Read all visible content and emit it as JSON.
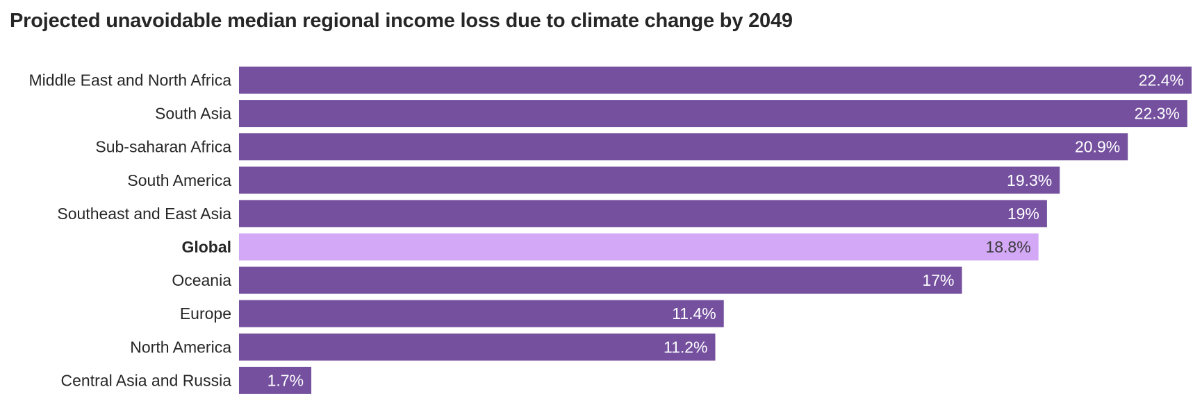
{
  "chart_data": {
    "type": "bar",
    "orientation": "horizontal",
    "title": "Projected unavoidable median regional income loss due to climate change by 2049",
    "value_suffix": "%",
    "value_labels": [
      "22.4%",
      "22.3%",
      "20.9%",
      "19.3%",
      "19%",
      "18.8%",
      "17%",
      "11.4%",
      "11.2%",
      "1.7%"
    ],
    "categories": [
      "Middle East and North Africa",
      "South Asia",
      "Sub-saharan Africa",
      "South America",
      "Southeast and East Asia",
      "Global",
      "Oceania",
      "Europe",
      "North America",
      "Central Asia and Russia"
    ],
    "values": [
      22.4,
      22.3,
      20.9,
      19.3,
      19,
      18.8,
      17,
      11.4,
      11.2,
      1.7
    ],
    "highlight_category": "Global",
    "xlim": [
      0,
      22.4
    ],
    "grid": false,
    "legend": "none",
    "xlabel": "",
    "ylabel": ""
  },
  "colors": {
    "bar": "#74509f",
    "highlight_bar": "#d3a8f6",
    "label_on_bar": "#ffffff",
    "label_on_highlight": "#3a3a3a",
    "category_text": "#262626"
  }
}
